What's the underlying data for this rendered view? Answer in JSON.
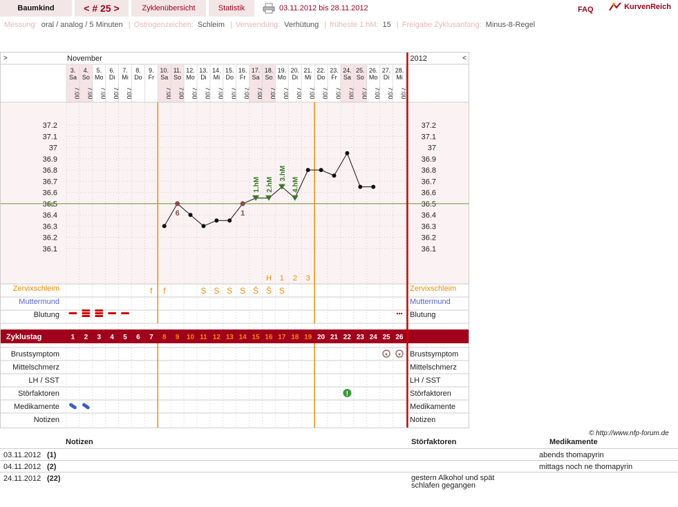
{
  "header": {
    "brand": "Baumkind",
    "cycle_label": "< # 25 >",
    "tab_overview": "Zyklenübersicht",
    "tab_stats": "Statistik",
    "date_range": "03.11.2012 bis 28.11.2012",
    "faq": "FAQ",
    "logo": "KurvenReich"
  },
  "settings": {
    "measure_label": "Messung:",
    "measure_value": "oral / analog / 5 Minuten",
    "estrogen_label": "Östrogenzeichen:",
    "estrogen_value": "Schleim",
    "usage_label": "Verwendung:",
    "usage_value": "Verhütung",
    "earliest_label": "früheste 1.hM:",
    "earliest_value": "15",
    "release_label": "Freigabe Zyklusanfang:",
    "release_value": "Minus-8-Regel"
  },
  "chart_data": {
    "type": "line",
    "month_label": "November",
    "year_label": "2012",
    "nav_left": ">",
    "nav_right": "<",
    "time_label": "7:00",
    "days": [
      {
        "date": "3.",
        "wd": "Sa",
        "cd": 1,
        "time": true
      },
      {
        "date": "4.",
        "wd": "So",
        "cd": 2,
        "time": true
      },
      {
        "date": "5.",
        "wd": "Mo",
        "cd": 3,
        "time": true
      },
      {
        "date": "6.",
        "wd": "Di",
        "cd": 4,
        "time": true
      },
      {
        "date": "7.",
        "wd": "Mi",
        "cd": 5,
        "time": true
      },
      {
        "date": "8.",
        "wd": "Do",
        "cd": 6,
        "time": false
      },
      {
        "date": "9.",
        "wd": "Fr",
        "cd": 7,
        "time": false
      },
      {
        "date": "10.",
        "wd": "Sa",
        "cd": 8,
        "time": true
      },
      {
        "date": "11.",
        "wd": "So",
        "cd": 9,
        "time": true
      },
      {
        "date": "12.",
        "wd": "Mo",
        "cd": 10,
        "time": true
      },
      {
        "date": "13.",
        "wd": "Di",
        "cd": 11,
        "time": true
      },
      {
        "date": "14.",
        "wd": "Mi",
        "cd": 12,
        "time": true
      },
      {
        "date": "15.",
        "wd": "Do",
        "cd": 13,
        "time": true
      },
      {
        "date": "16.",
        "wd": "Fr",
        "cd": 14,
        "time": true
      },
      {
        "date": "17.",
        "wd": "Sa",
        "cd": 15,
        "time": true
      },
      {
        "date": "18.",
        "wd": "So",
        "cd": 16,
        "time": true
      },
      {
        "date": "19.",
        "wd": "Mo",
        "cd": 17,
        "time": true
      },
      {
        "date": "20.",
        "wd": "Di",
        "cd": 18,
        "time": true
      },
      {
        "date": "21.",
        "wd": "Mi",
        "cd": 19,
        "time": true
      },
      {
        "date": "22.",
        "wd": "Do",
        "cd": 20,
        "time": true
      },
      {
        "date": "23.",
        "wd": "Fr",
        "cd": 21,
        "time": true
      },
      {
        "date": "24.",
        "wd": "Sa",
        "cd": 22,
        "time": true
      },
      {
        "date": "25.",
        "wd": "So",
        "cd": 23,
        "time": true
      },
      {
        "date": "26.",
        "wd": "Mo",
        "cd": 24,
        "time": true
      },
      {
        "date": "27.",
        "wd": "Di",
        "cd": 25,
        "time": true
      },
      {
        "date": "28.",
        "wd": "Mi",
        "cd": 26,
        "time": true
      }
    ],
    "y_ticks": [
      "37.2",
      "37.1",
      "37",
      "36.9",
      "36.8",
      "36.7",
      "36.6",
      "36.5",
      "36.4",
      "36.3",
      "36.2",
      "36.1"
    ],
    "ylim": [
      36.0,
      37.3
    ],
    "coverline": 36.5,
    "coverline_label": "HL",
    "temps": [
      null,
      null,
      null,
      null,
      null,
      null,
      null,
      36.3,
      36.5,
      36.4,
      36.3,
      36.35,
      36.35,
      36.5,
      36.55,
      36.55,
      36.65,
      36.55,
      36.8,
      36.8,
      36.75,
      36.95,
      36.65,
      36.65,
      null,
      null
    ],
    "point_kinds": [
      "",
      "",
      "",
      "",
      "",
      "",
      "",
      "n",
      "mark",
      "n",
      "n",
      "n",
      "n",
      "mark",
      "hm",
      "hm",
      "hm",
      "hm",
      "n",
      "n",
      "n",
      "n",
      "n",
      "n",
      "",
      ""
    ],
    "point_labels": {
      "8": "6",
      "13": "1"
    },
    "hm_labels": {
      "14": "1.hM",
      "15": "2.hM",
      "16": "3.hM",
      "17": "4.hM"
    },
    "peak_row": {
      "15": "H",
      "16": "1",
      "17": "2",
      "18": "3"
    },
    "separator_days": [
      7,
      19
    ],
    "rows_upper": [
      {
        "label": "Zervixschleim",
        "cls": "orange"
      },
      {
        "label": "Muttermund",
        "cls": "blue"
      },
      {
        "label": "Blutung",
        "cls": "plain"
      }
    ],
    "mucus": {
      "6": "f",
      "7": "f",
      "10": "S",
      "11": "S",
      "12": "S",
      "13": "S",
      "14": "S̄",
      "15": "S̄",
      "16": "S"
    },
    "bleeding": {
      "0": 1,
      "1": 3,
      "2": 3,
      "3": 1,
      "4": 1,
      "25": "dots"
    },
    "cycle_day_label": "Zyklustag",
    "rows_lower": [
      {
        "label": "Brustsymptom"
      },
      {
        "label": "Mittelschmerz"
      },
      {
        "label": "LH / SST"
      },
      {
        "label": "Störfaktoren"
      },
      {
        "label": "Medikamente"
      },
      {
        "label": "Notizen"
      }
    ],
    "breast": [
      24,
      25
    ],
    "disturb": [
      21
    ],
    "meds": [
      0,
      1
    ]
  },
  "copyright": "© http://www.nfp-forum.de",
  "notes": {
    "col_notes": "Notizen",
    "col_disturb": "Störfaktoren",
    "col_meds": "Medikamente",
    "rows": [
      {
        "date": "03.11.2012",
        "num": "(1)",
        "disturb": "",
        "meds": "abends thomapyrin"
      },
      {
        "date": "04.11.2012",
        "num": "(2)",
        "disturb": "",
        "meds": "mittags noch ne thomapyrin"
      },
      {
        "date": "24.11.2012",
        "num": "(22)",
        "disturb": "gestern Alkohol und spät schlafen gegangen",
        "meds": ""
      }
    ]
  },
  "colors": {
    "accent": "#a1001c",
    "orange": "#f08a00",
    "blue": "#5566cc",
    "green": "#5a8a2a",
    "hm": "#3a7a2a"
  }
}
